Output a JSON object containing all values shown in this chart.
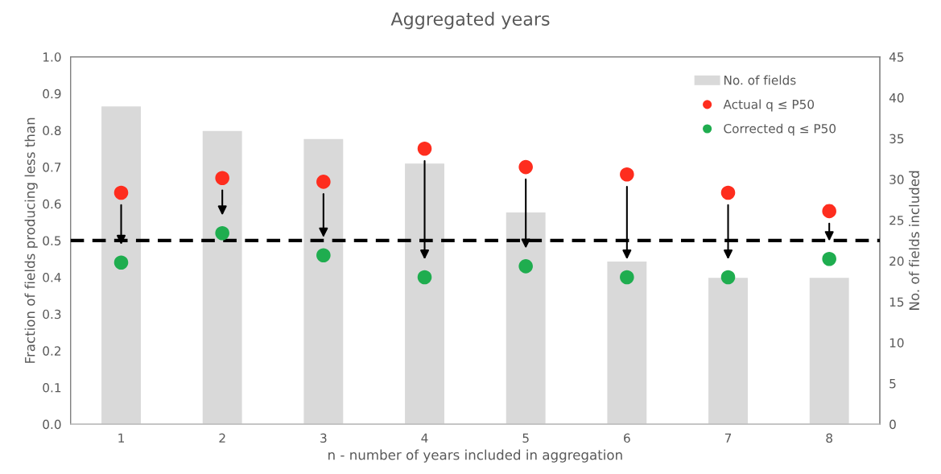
{
  "chart_data": {
    "type": "scatter",
    "title": "Aggregated years",
    "xlabel": "n - number of years included in aggregation",
    "ylabel": "Fraction of fields producing less than",
    "y2label": "No. of fields included",
    "categories": [
      "1",
      "2",
      "3",
      "4",
      "5",
      "6",
      "7",
      "8"
    ],
    "series": [
      {
        "name": "No. of fields",
        "type": "bar",
        "axis": "y2",
        "color": "#d9d9d9",
        "values": [
          39,
          36,
          35,
          32,
          26,
          20,
          18,
          18
        ]
      },
      {
        "name": "Actual q ≤ P50",
        "color": "#fe2d1e",
        "values": [
          0.63,
          0.67,
          0.66,
          0.75,
          0.7,
          0.68,
          0.63,
          0.58
        ]
      },
      {
        "name": "Corrected q ≤ P50",
        "color": "#1fad4f",
        "values": [
          0.44,
          0.52,
          0.46,
          0.4,
          0.43,
          0.4,
          0.4,
          0.45
        ]
      }
    ],
    "ylim": [
      0,
      1
    ],
    "yticks": [
      {
        "value": 0,
        "label": "0.0"
      },
      0.1,
      0.2,
      0.3,
      0.4,
      0.5,
      0.6,
      0.7,
      0.8,
      0.9,
      {
        "value": 1,
        "label": "1.0"
      }
    ],
    "y2lim": [
      0,
      45
    ],
    "y2ticks": [
      0,
      5,
      10,
      15,
      20,
      25,
      30,
      35,
      40,
      45
    ],
    "ref_lines": [
      {
        "axis": "y",
        "value": 0.5,
        "color": "#000000",
        "line_style": "dashed"
      }
    ],
    "marker": "circle",
    "legend": "top right"
  }
}
